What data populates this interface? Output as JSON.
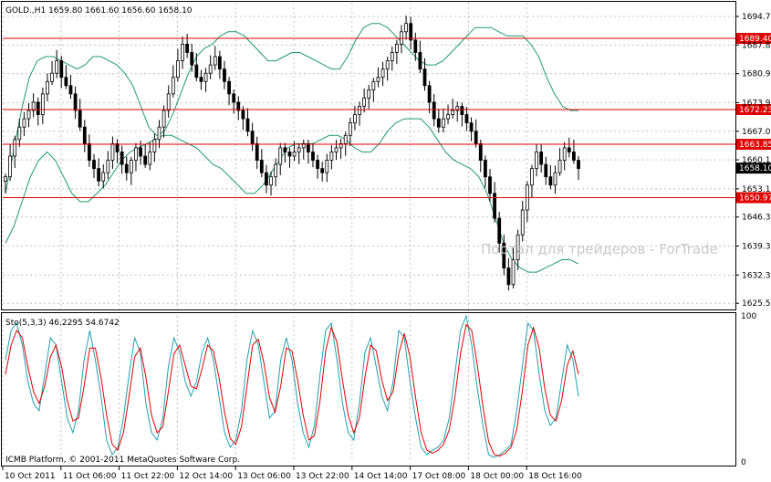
{
  "header": {
    "symbol_info": "GOLD.,H1  1659.80 1661.60 1656.60 1658.10",
    "stoch_info": "Sto(5,3,3) 46.2295 54.6742"
  },
  "watermark": "Портал для трейдеров - ForTrade",
  "footer": "ICMB Platform, © 2001-2011 MetaQuotes Software Corp.",
  "colors": {
    "background": "#ffffff",
    "grid": "#c0c0c0",
    "level_line": "#e00000",
    "level_label_bg": "#e00000",
    "price_label_bg": "#000000",
    "bands": "#1e9a6a",
    "candles": "#000000",
    "stoch_main": "#20a0b0",
    "stoch_signal": "#e00000"
  },
  "chart_data": [
    {
      "type": "candlestick",
      "name": "GOLD.,H1",
      "ylim": [
        1624.0,
        1698.0
      ],
      "y_ticks": [
        "1694.70",
        "1687.80",
        "1680.90",
        "1673.90",
        "1667.00",
        "1660.10",
        "1653.10",
        "1646.30",
        "1639.30",
        "1632.30",
        "1625.50"
      ],
      "x_ticks": [
        "10 Oct 2011",
        "11 Oct 06:00",
        "11 Oct 22:00",
        "12 Oct 14:00",
        "13 Oct 06:00",
        "13 Oct 22:00",
        "14 Oct 14:00",
        "17 Oct 08:00",
        "18 Oct 00:00",
        "18 Oct 16:00"
      ],
      "levels": [
        {
          "value": 1689.4,
          "label": "1689.40"
        },
        {
          "value": 1672.23,
          "label": "1672.23"
        },
        {
          "value": 1663.85,
          "label": "1663.85"
        },
        {
          "value": 1650.97,
          "label": "1650.97"
        }
      ],
      "current_price": {
        "value": 1658.1,
        "label": "1658.10"
      },
      "close_path": [
        1656,
        1661,
        1665,
        1668,
        1670,
        1672,
        1674,
        1671,
        1676,
        1679,
        1681,
        1684,
        1680,
        1678,
        1676,
        1672,
        1668,
        1664,
        1660,
        1658,
        1655,
        1657,
        1660,
        1664,
        1662,
        1659,
        1657,
        1660,
        1663,
        1661,
        1659,
        1662,
        1665,
        1668,
        1672,
        1676,
        1680,
        1684,
        1688,
        1686,
        1683,
        1680,
        1679,
        1681,
        1683,
        1685,
        1682,
        1679,
        1676,
        1674,
        1672,
        1670,
        1667,
        1664,
        1660,
        1657,
        1654,
        1656,
        1659,
        1663,
        1662,
        1661,
        1662,
        1663,
        1664,
        1662,
        1660,
        1658,
        1657,
        1660,
        1662,
        1663,
        1664,
        1666,
        1669,
        1671,
        1673,
        1675,
        1677,
        1679,
        1680,
        1682,
        1684,
        1686,
        1688,
        1691,
        1693,
        1689,
        1686,
        1682,
        1678,
        1674,
        1670,
        1668,
        1670,
        1671,
        1672,
        1673,
        1671,
        1669,
        1667,
        1664,
        1660,
        1656,
        1652,
        1646,
        1640,
        1634,
        1630,
        1636,
        1642,
        1648,
        1654,
        1658,
        1662,
        1659,
        1656,
        1654,
        1657,
        1660,
        1663,
        1662,
        1660,
        1658
      ],
      "upper_band": [
        1652,
        1662,
        1672,
        1680,
        1684,
        1685,
        1685,
        1684,
        1683,
        1682,
        1683,
        1685,
        1685,
        1684,
        1683,
        1681,
        1678,
        1673,
        1668,
        1666,
        1667,
        1671,
        1676,
        1681,
        1685,
        1687,
        1688,
        1690,
        1691,
        1691,
        1690,
        1688,
        1686,
        1684,
        1684,
        1685,
        1686,
        1686,
        1685,
        1684,
        1683,
        1682,
        1682,
        1685,
        1689,
        1692,
        1693,
        1693,
        1692,
        1690,
        1688,
        1686,
        1684,
        1683,
        1683,
        1684,
        1686,
        1688,
        1690,
        1692,
        1692,
        1692,
        1691,
        1690,
        1690,
        1690,
        1688,
        1685,
        1680,
        1676,
        1673,
        1672,
        1672
      ],
      "lower_band": [
        1640,
        1644,
        1650,
        1656,
        1660,
        1662,
        1660,
        1656,
        1652,
        1650,
        1650,
        1652,
        1654,
        1657,
        1660,
        1662,
        1663,
        1664,
        1665,
        1666,
        1666,
        1665,
        1664,
        1663,
        1661,
        1659,
        1658,
        1656,
        1654,
        1652,
        1652,
        1654,
        1657,
        1660,
        1663,
        1664,
        1664,
        1664,
        1665,
        1666,
        1666,
        1665,
        1663,
        1662,
        1662,
        1664,
        1667,
        1669,
        1670,
        1670,
        1670,
        1668,
        1665,
        1662,
        1660,
        1659,
        1658,
        1656,
        1652,
        1646,
        1640,
        1636,
        1634,
        1633,
        1633,
        1634,
        1635,
        1636,
        1636,
        1635
      ]
    },
    {
      "type": "line",
      "name": "Sto(5,3,3)",
      "ylim": [
        0,
        100
      ],
      "y_ticks": [
        "100",
        "0"
      ],
      "series": [
        {
          "role": "main",
          "values": [
            70,
            90,
            95,
            80,
            55,
            40,
            35,
            60,
            85,
            80,
            55,
            30,
            20,
            35,
            70,
            90,
            70,
            45,
            15,
            5,
            10,
            30,
            60,
            85,
            75,
            40,
            20,
            15,
            30,
            65,
            85,
            75,
            55,
            45,
            55,
            75,
            85,
            70,
            45,
            20,
            10,
            15,
            35,
            70,
            90,
            80,
            55,
            30,
            35,
            70,
            85,
            70,
            40,
            20,
            10,
            25,
            60,
            90,
            95,
            70,
            40,
            20,
            15,
            40,
            75,
            85,
            65,
            45,
            35,
            55,
            90,
            85,
            55,
            30,
            10,
            5,
            8,
            10,
            15,
            30,
            60,
            90,
            100,
            80,
            50,
            25,
            5,
            3,
            5,
            8,
            12,
            35,
            65,
            95,
            90,
            60,
            35,
            25,
            30,
            55,
            80,
            70,
            45
          ]
        },
        {
          "role": "signal",
          "values": [
            60,
            80,
            90,
            85,
            65,
            48,
            40,
            52,
            72,
            80,
            65,
            42,
            28,
            30,
            52,
            78,
            78,
            58,
            32,
            12,
            8,
            20,
            45,
            72,
            78,
            58,
            32,
            20,
            24,
            48,
            74,
            80,
            66,
            52,
            50,
            64,
            80,
            76,
            58,
            34,
            16,
            12,
            24,
            52,
            80,
            84,
            68,
            44,
            34,
            52,
            78,
            76,
            56,
            32,
            15,
            18,
            42,
            76,
            92,
            82,
            56,
            32,
            20,
            30,
            58,
            80,
            76,
            56,
            42,
            48,
            74,
            88,
            72,
            44,
            20,
            8,
            6,
            8,
            12,
            22,
            44,
            74,
            94,
            90,
            66,
            38,
            14,
            5,
            4,
            6,
            10,
            22,
            48,
            80,
            92,
            78,
            50,
            32,
            28,
            42,
            66,
            76,
            60
          ]
        }
      ]
    }
  ]
}
